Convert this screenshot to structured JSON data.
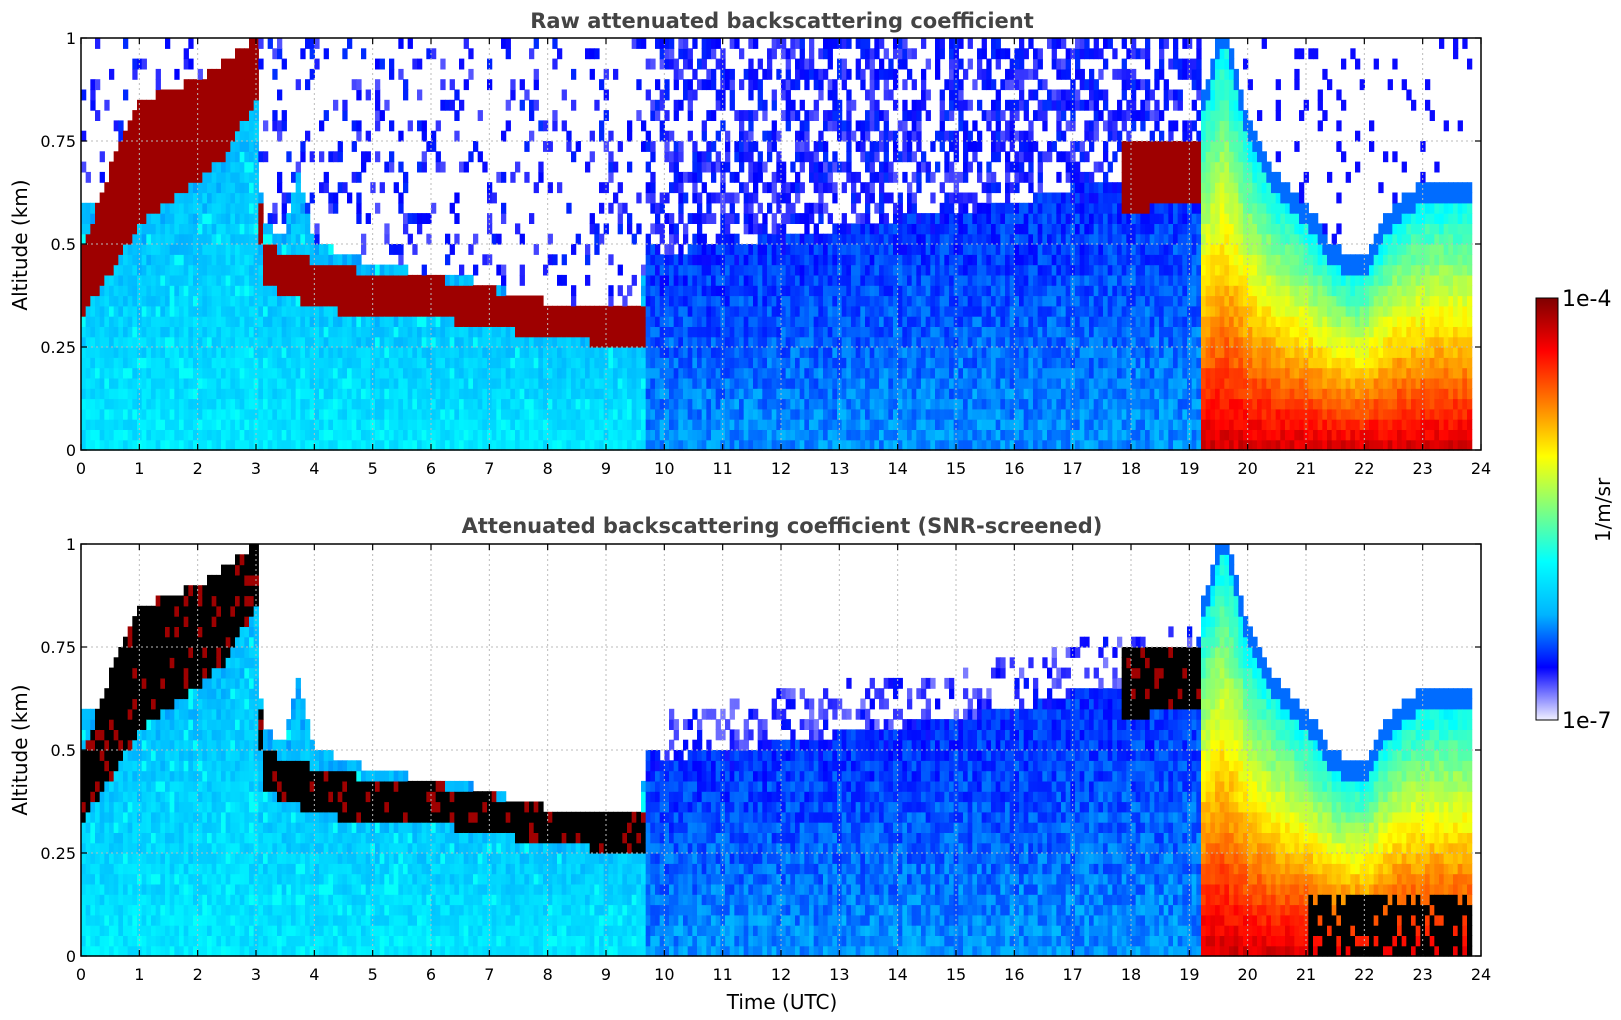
{
  "chart_data": [
    {
      "type": "heatmap",
      "title": "Raw attenuated backscattering coefficient",
      "xlabel": "",
      "ylabel": "Altitude (km)",
      "xlim": [
        0,
        24
      ],
      "ylim": [
        0,
        1
      ],
      "x_ticks": [
        "0",
        "1",
        "2",
        "3",
        "4",
        "5",
        "6",
        "7",
        "8",
        "9",
        "10",
        "11",
        "12",
        "13",
        "14",
        "15",
        "16",
        "17",
        "18",
        "19",
        "20",
        "21",
        "22",
        "23",
        "24"
      ],
      "y_ticks": [
        "0",
        "0.25",
        "0.5",
        "0.75",
        "1"
      ],
      "grid": true,
      "mode": "raw",
      "features": {
        "data_end_hour": 23.8,
        "layer_top_km": [
          [
            0,
            0.6
          ],
          [
            0.5,
            0.62
          ],
          [
            1,
            0.62
          ],
          [
            1.5,
            0.7
          ],
          [
            2,
            0.78
          ],
          [
            2.5,
            0.88
          ],
          [
            3,
            0.98
          ],
          [
            3.1,
            0.55
          ],
          [
            3.5,
            0.52
          ],
          [
            3.7,
            0.68
          ],
          [
            4,
            0.5
          ],
          [
            4.5,
            0.48
          ],
          [
            5,
            0.45
          ],
          [
            5.5,
            0.44
          ],
          [
            6,
            0.43
          ],
          [
            6.5,
            0.42
          ],
          [
            7,
            0.4
          ],
          [
            7.5,
            0.38
          ],
          [
            8,
            0.36
          ],
          [
            8.5,
            0.35
          ],
          [
            9,
            0.35
          ],
          [
            9.6,
            0.36
          ],
          [
            9.7,
            0.5
          ],
          [
            10,
            0.48
          ],
          [
            12,
            0.52
          ],
          [
            14,
            0.56
          ],
          [
            16,
            0.6
          ],
          [
            17,
            0.64
          ],
          [
            18,
            0.66
          ],
          [
            19,
            0.7
          ],
          [
            19.3,
            0.85
          ],
          [
            19.6,
            1.0
          ],
          [
            20,
            0.75
          ],
          [
            20.5,
            0.62
          ],
          [
            21,
            0.55
          ],
          [
            21.5,
            0.44
          ],
          [
            22,
            0.42
          ],
          [
            22.5,
            0.55
          ],
          [
            23,
            0.6
          ],
          [
            23.8,
            0.6
          ]
        ],
        "cloud_base_km": [
          [
            0,
            0.32
          ],
          [
            0.8,
            0.5
          ],
          [
            1,
            0.55
          ],
          [
            2,
            0.65
          ],
          [
            2.5,
            0.72
          ],
          [
            3,
            0.85
          ],
          [
            3.1,
            0.4
          ],
          [
            4,
            0.35
          ],
          [
            5,
            0.32
          ],
          [
            6,
            0.32
          ],
          [
            7,
            0.3
          ],
          [
            8,
            0.27
          ],
          [
            9,
            0.26
          ],
          [
            9.6,
            0.26
          ],
          [
            17.8,
            0.58
          ],
          [
            19.2,
            0.6
          ]
        ],
        "cloud_top_km": [
          [
            0,
            0.48
          ],
          [
            0.8,
            0.8
          ],
          [
            1,
            0.85
          ],
          [
            2,
            0.9
          ],
          [
            2.5,
            0.95
          ],
          [
            3,
            1.0
          ],
          [
            3.1,
            0.5
          ],
          [
            4,
            0.46
          ],
          [
            5,
            0.43
          ],
          [
            6,
            0.42
          ],
          [
            7,
            0.39
          ],
          [
            8,
            0.36
          ],
          [
            9,
            0.34
          ],
          [
            9.6,
            0.36
          ],
          [
            17.8,
            0.75
          ],
          [
            19.2,
            0.75
          ]
        ]
      }
    },
    {
      "type": "heatmap",
      "title": "Attenuated backscattering coefficient (SNR-screened)",
      "xlabel": "Time (UTC)",
      "ylabel": "Altitude (km)",
      "xlim": [
        0,
        24
      ],
      "ylim": [
        0,
        1
      ],
      "x_ticks": [
        "0",
        "1",
        "2",
        "3",
        "4",
        "5",
        "6",
        "7",
        "8",
        "9",
        "10",
        "11",
        "12",
        "13",
        "14",
        "15",
        "16",
        "17",
        "18",
        "19",
        "20",
        "21",
        "22",
        "23",
        "24"
      ],
      "y_ticks": [
        "0",
        "0.25",
        "0.5",
        "0.75",
        "1"
      ],
      "grid": true,
      "mode": "screened"
    }
  ],
  "colorbar": {
    "min_label": "1e-7",
    "max_label": "1e-4",
    "label": "1/m/sr",
    "colormap": [
      "#f0f0ff",
      "#0000ff",
      "#00b4ff",
      "#00ffff",
      "#7fff7f",
      "#ffff00",
      "#ff7f00",
      "#ff0000",
      "#7f0000"
    ]
  }
}
